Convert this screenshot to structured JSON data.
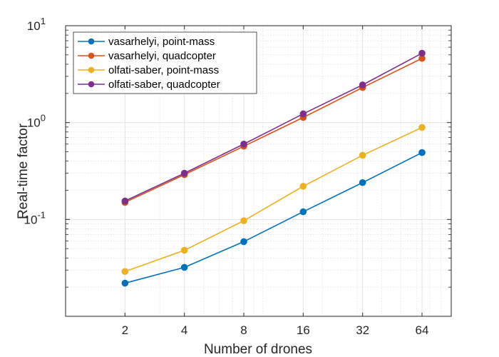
{
  "chart_data": {
    "type": "line",
    "xlabel": "Number of drones",
    "ylabel": "Real-time factor",
    "x_scale": "log2",
    "y_scale": "log10",
    "x": [
      2,
      4,
      8,
      16,
      32,
      64
    ],
    "x_tick_labels": [
      "2",
      "4",
      "8",
      "16",
      "32",
      "64"
    ],
    "xlim": [
      1,
      90
    ],
    "ylim": [
      0.01,
      10
    ],
    "y_tick_labels": [
      {
        "value": 0.1,
        "base": "10",
        "exp": "-1"
      },
      {
        "value": 1,
        "base": "10",
        "exp": "0"
      },
      {
        "value": 10,
        "base": "10",
        "exp": "1"
      }
    ],
    "grid": true,
    "minor_grid": true,
    "legend_position": "top-left",
    "series": [
      {
        "name": "vasarhelyi, point-mass",
        "color": "#0072BD",
        "values": [
          0.022,
          0.032,
          0.059,
          0.12,
          0.24,
          0.49
        ]
      },
      {
        "name": "vasarhelyi, quadcopter",
        "color": "#D95319",
        "values": [
          0.15,
          0.29,
          0.57,
          1.13,
          2.3,
          4.6
        ]
      },
      {
        "name": "olfati-saber, point-mass",
        "color": "#EDB120",
        "values": [
          0.029,
          0.048,
          0.097,
          0.22,
          0.46,
          0.89
        ]
      },
      {
        "name": "olfati-saber, quadcopter",
        "color": "#7E2F8E",
        "values": [
          0.155,
          0.3,
          0.6,
          1.23,
          2.45,
          5.2
        ]
      }
    ]
  }
}
